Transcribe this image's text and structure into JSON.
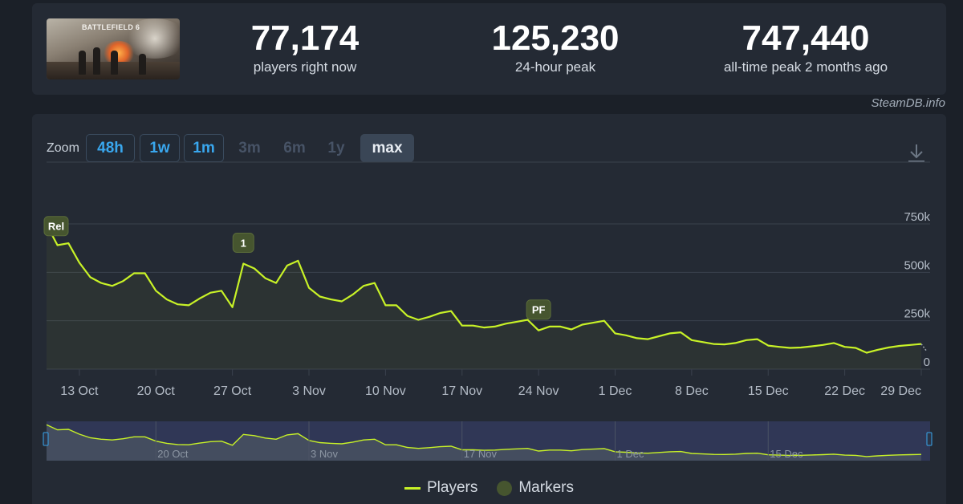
{
  "header": {
    "game_logo": "BATTLEFIELD 6",
    "stats": [
      {
        "value": "77,174",
        "label": "players right now"
      },
      {
        "value": "125,230",
        "label": "24-hour peak"
      },
      {
        "value": "747,440",
        "label": "all-time peak 2 months ago"
      }
    ],
    "credit": "SteamDB.info"
  },
  "zoom": {
    "label": "Zoom",
    "buttons": [
      {
        "label": "48h",
        "state": "active"
      },
      {
        "label": "1w",
        "state": "active"
      },
      {
        "label": "1m",
        "state": "active"
      },
      {
        "label": "3m",
        "state": "disabled"
      },
      {
        "label": "6m",
        "state": "disabled"
      },
      {
        "label": "1y",
        "state": "disabled"
      },
      {
        "label": "max",
        "state": "selected"
      }
    ],
    "download_icon": "download-icon"
  },
  "legend": {
    "players": "Players",
    "markers": "Markers"
  },
  "colors": {
    "line": "#c8f227",
    "marker": "#46552f",
    "navigator_mask": "#3a4172",
    "grid": "#3a414d"
  },
  "chart_data": {
    "type": "line",
    "x_start": "10 Oct",
    "x_ticks": [
      "13 Oct",
      "20 Oct",
      "27 Oct",
      "3 Nov",
      "10 Nov",
      "17 Nov",
      "24 Nov",
      "1 Dec",
      "8 Dec",
      "15 Dec",
      "22 Dec",
      "29 Dec"
    ],
    "y_ticks": [
      "0",
      "250k",
      "500k",
      "750k"
    ],
    "ylim": [
      0,
      750000
    ],
    "navigator_ticks": [
      "20 Oct",
      "3 Nov",
      "17 Nov",
      "1 Dec",
      "15 Dec"
    ],
    "series": [
      {
        "name": "Players",
        "values": [
          747000,
          640000,
          650000,
          550000,
          475000,
          445000,
          430000,
          455000,
          495000,
          495000,
          405000,
          360000,
          335000,
          330000,
          365000,
          395000,
          405000,
          320000,
          545000,
          520000,
          470000,
          445000,
          535000,
          560000,
          420000,
          375000,
          360000,
          350000,
          385000,
          430000,
          445000,
          330000,
          330000,
          275000,
          255000,
          270000,
          290000,
          300000,
          225000,
          225000,
          215000,
          220000,
          235000,
          245000,
          255000,
          200000,
          220000,
          220000,
          205000,
          230000,
          240000,
          250000,
          185000,
          175000,
          160000,
          155000,
          170000,
          185000,
          190000,
          150000,
          140000,
          130000,
          128000,
          135000,
          150000,
          155000,
          122000,
          115000,
          110000,
          112000,
          118000,
          125000,
          135000,
          115000,
          110000,
          85000,
          100000,
          112000,
          120000,
          125000,
          130000
        ]
      }
    ],
    "markers": [
      {
        "label": "Rel",
        "date_index": 0,
        "value": 747000
      },
      {
        "label": "1",
        "date_index": 18,
        "value": 545000
      },
      {
        "label": "PF",
        "date_index": 45,
        "value": 200000
      }
    ]
  }
}
